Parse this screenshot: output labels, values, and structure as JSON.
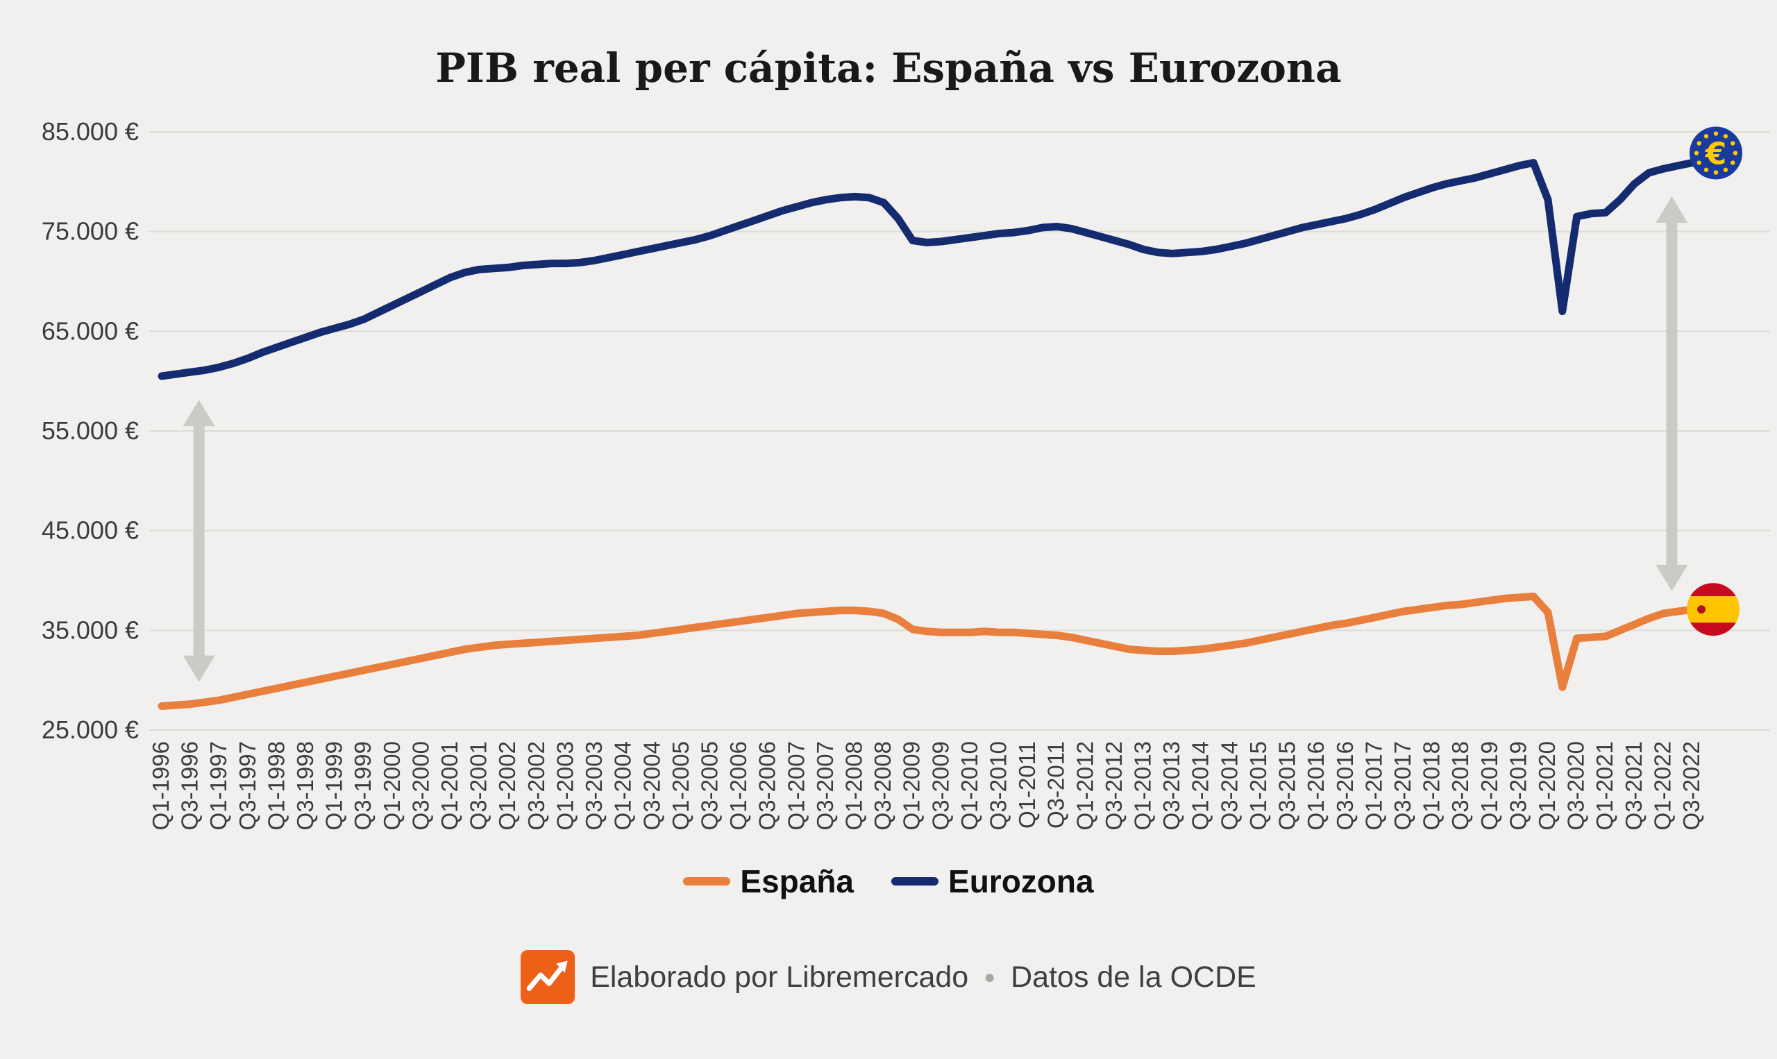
{
  "title": "PIB real per cápita: España vs Eurozona",
  "colors": {
    "background": "#F1F0EE",
    "grid": "#DCDBD8",
    "axis_text": "#3C3C3C",
    "title_text": "#191919",
    "espana": "#E87F3D",
    "eurozona": "#142B6F",
    "arrow": "#CBCAC7",
    "logo": "#EE5F17",
    "eu_flag_bg": "#1B3A9E",
    "eu_flag_star": "#FFCC00",
    "spain_flag_red": "#C60B1E",
    "spain_flag_yellow": "#FFC400"
  },
  "chart_data": {
    "type": "line",
    "title": "PIB real per cápita: España vs Eurozona",
    "xlabel": "",
    "ylabel": "",
    "y_unit": "€",
    "ylim": [
      25000,
      85000
    ],
    "y_ticks": [
      25000,
      35000,
      45000,
      55000,
      65000,
      75000,
      85000
    ],
    "y_tick_labels": [
      "25.000 €",
      "35.000 €",
      "45.000 €",
      "55.000 €",
      "65.000 €",
      "75.000 €",
      "85.000 €"
    ],
    "grid": "horizontal",
    "legend_position": "bottom",
    "x_tick_every": 2,
    "x": [
      "Q1-1996",
      "Q2-1996",
      "Q3-1996",
      "Q4-1996",
      "Q1-1997",
      "Q2-1997",
      "Q3-1997",
      "Q4-1997",
      "Q1-1998",
      "Q2-1998",
      "Q3-1998",
      "Q4-1998",
      "Q1-1999",
      "Q2-1999",
      "Q3-1999",
      "Q4-1999",
      "Q1-2000",
      "Q2-2000",
      "Q3-2000",
      "Q4-2000",
      "Q1-2001",
      "Q2-2001",
      "Q3-2001",
      "Q4-2001",
      "Q1-2002",
      "Q2-2002",
      "Q3-2002",
      "Q4-2002",
      "Q1-2003",
      "Q2-2003",
      "Q3-2003",
      "Q4-2003",
      "Q1-2004",
      "Q2-2004",
      "Q3-2004",
      "Q4-2004",
      "Q1-2005",
      "Q2-2005",
      "Q3-2005",
      "Q4-2005",
      "Q1-2006",
      "Q2-2006",
      "Q3-2006",
      "Q4-2006",
      "Q1-2007",
      "Q2-2007",
      "Q3-2007",
      "Q4-2007",
      "Q1-2008",
      "Q2-2008",
      "Q3-2008",
      "Q4-2008",
      "Q1-2009",
      "Q2-2009",
      "Q3-2009",
      "Q4-2009",
      "Q1-2010",
      "Q2-2010",
      "Q3-2010",
      "Q4-2010",
      "Q1-2011",
      "Q2-2011",
      "Q3-2011",
      "Q4-2011",
      "Q1-2012",
      "Q2-2012",
      "Q3-2012",
      "Q4-2012",
      "Q1-2013",
      "Q2-2013",
      "Q3-2013",
      "Q4-2013",
      "Q1-2014",
      "Q2-2014",
      "Q3-2014",
      "Q4-2014",
      "Q1-2015",
      "Q2-2015",
      "Q3-2015",
      "Q4-2015",
      "Q1-2016",
      "Q2-2016",
      "Q3-2016",
      "Q4-2016",
      "Q1-2017",
      "Q2-2017",
      "Q3-2017",
      "Q4-2017",
      "Q1-2018",
      "Q2-2018",
      "Q3-2018",
      "Q4-2018",
      "Q1-2019",
      "Q2-2019",
      "Q3-2019",
      "Q4-2019",
      "Q1-2020",
      "Q2-2020",
      "Q3-2020",
      "Q4-2020",
      "Q1-2021",
      "Q2-2021",
      "Q3-2021",
      "Q4-2021",
      "Q1-2022",
      "Q2-2022",
      "Q3-2022"
    ],
    "series": [
      {
        "name": "España",
        "color": "#E87F3D",
        "values": [
          27400,
          27500,
          27600,
          27800,
          28000,
          28300,
          28600,
          28900,
          29200,
          29500,
          29800,
          30100,
          30400,
          30700,
          31000,
          31300,
          31600,
          31900,
          32200,
          32500,
          32800,
          33100,
          33300,
          33500,
          33600,
          33700,
          33800,
          33900,
          34000,
          34100,
          34200,
          34300,
          34400,
          34500,
          34700,
          34900,
          35100,
          35300,
          35500,
          35700,
          35900,
          36100,
          36300,
          36500,
          36700,
          36800,
          36900,
          37000,
          37000,
          36900,
          36700,
          36100,
          35100,
          34900,
          34800,
          34800,
          34800,
          34900,
          34800,
          34800,
          34700,
          34600,
          34500,
          34300,
          34000,
          33700,
          33400,
          33100,
          33000,
          32900,
          32900,
          33000,
          33100,
          33300,
          33500,
          33700,
          34000,
          34300,
          34600,
          34900,
          35200,
          35500,
          35700,
          36000,
          36300,
          36600,
          36900,
          37100,
          37300,
          37500,
          37600,
          37800,
          38000,
          38200,
          38300,
          38400,
          36800,
          29300,
          34200,
          34300,
          34400,
          35000,
          35600,
          36200,
          36700,
          36900,
          37100
        ]
      },
      {
        "name": "Eurozona",
        "color": "#142B6F",
        "values": [
          60500,
          60700,
          60900,
          61100,
          61400,
          61800,
          62300,
          62900,
          63400,
          63900,
          64400,
          64900,
          65300,
          65700,
          66200,
          66900,
          67600,
          68300,
          69000,
          69700,
          70400,
          70900,
          71200,
          71300,
          71400,
          71600,
          71700,
          71800,
          71800,
          71900,
          72100,
          72400,
          72700,
          73000,
          73300,
          73600,
          73900,
          74200,
          74600,
          75100,
          75600,
          76100,
          76600,
          77100,
          77500,
          77900,
          78200,
          78400,
          78500,
          78400,
          77900,
          76300,
          74100,
          73900,
          74000,
          74200,
          74400,
          74600,
          74800,
          74900,
          75100,
          75400,
          75500,
          75300,
          74900,
          74500,
          74100,
          73700,
          73200,
          72900,
          72800,
          72900,
          73000,
          73200,
          73500,
          73800,
          74200,
          74600,
          75000,
          75400,
          75700,
          76000,
          76300,
          76700,
          77200,
          77800,
          78400,
          78900,
          79400,
          79800,
          80100,
          80400,
          80800,
          81200,
          81600,
          81900,
          78200,
          67000,
          76500,
          76800,
          76900,
          78200,
          79800,
          80900,
          81300,
          81600,
          81900
        ]
      }
    ]
  },
  "annotations": {
    "gap_arrows": [
      {
        "quarter": "Q3-1996",
        "index": 2
      },
      {
        "quarter": "Q1-2022",
        "index": 104
      }
    ],
    "end_icons": [
      {
        "series": "Eurozona",
        "name": "eu-flag-icon",
        "symbol": "€"
      },
      {
        "series": "España",
        "name": "spain-flag-icon"
      }
    ]
  },
  "legend": {
    "items": [
      {
        "label": "España"
      },
      {
        "label": "Eurozona"
      }
    ]
  },
  "footer": {
    "credit": "Elaborado por Libremercado",
    "separator": "●",
    "source": "Datos de la OCDE"
  }
}
